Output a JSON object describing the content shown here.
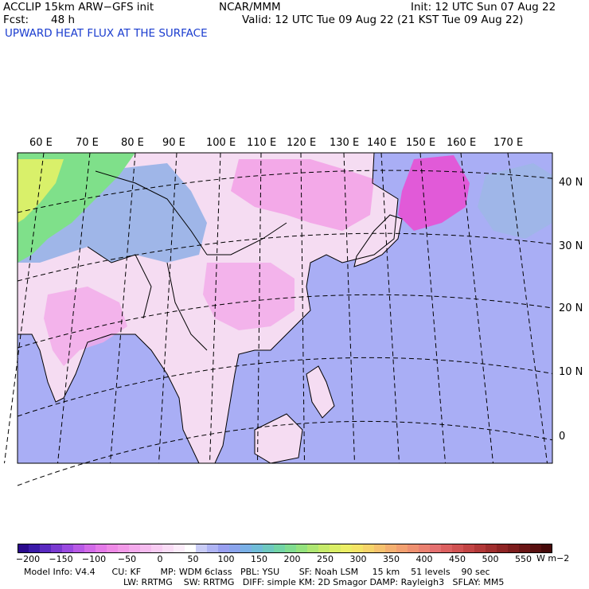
{
  "header": {
    "model_line": "ACCLIP 15km ARW−GFS init",
    "fcst_label": "Fcst:",
    "fcst_value": "48 h",
    "org": "NCAR/MMM",
    "init": "Init: 12 UTC Sun 07 Aug 22",
    "valid": "Valid: 12 UTC Tue 09 Aug 22 (21 KST Tue 09 Aug 22)",
    "field_title": "UPWARD HEAT FLUX AT THE SURFACE"
  },
  "map": {
    "lon_labels": [
      "60 E",
      "70 E",
      "80 E",
      "90 E",
      "100 E",
      "110 E",
      "120 E",
      "130 E",
      "140 E",
      "150 E",
      "160 E",
      "170 E"
    ],
    "lat_labels": [
      "40 N",
      "30 N",
      "20 N",
      "10 N",
      "0"
    ],
    "colors": {
      "ocean": "#a9aef5",
      "land_light": "#f5dcf2",
      "land_pink": "#f3a9e8",
      "hot_pink": "#e15ad8",
      "highland": "#9fb6e8",
      "green": "#7fe08a",
      "yellow": "#d9f06a"
    }
  },
  "colorbar": {
    "labels": [
      "−200",
      "−150",
      "−100",
      "−50",
      "0",
      "50",
      "100",
      "150",
      "200",
      "250",
      "300",
      "350",
      "400",
      "450",
      "500",
      "550"
    ],
    "unit": "W m−2",
    "colors": [
      "#2a0a8c",
      "#3a1aa8",
      "#5a2ac0",
      "#7a3ad0",
      "#9a4ae0",
      "#b85ae6",
      "#d26ae8",
      "#e47ae8",
      "#ee8ae6",
      "#f29ae8",
      "#f4aaec",
      "#f6bcef",
      "#f8ccf2",
      "#fadcf6",
      "#fcecfa",
      "#ffffff",
      "#c9ccf6",
      "#afb4f4",
      "#989ff0",
      "#8aa4ec",
      "#7ab0e6",
      "#70bcd8",
      "#6ec8c0",
      "#72d4a6",
      "#80dc90",
      "#94e27e",
      "#aee672",
      "#c6ea6a",
      "#daee66",
      "#ecee66",
      "#f4e466",
      "#f6d46a",
      "#f6c26e",
      "#f4b070",
      "#f2a070",
      "#ee9070",
      "#ea8070",
      "#e47070",
      "#dc6060",
      "#d05252",
      "#c24444",
      "#b23838",
      "#a02e2e",
      "#8e2424",
      "#7c1c1c",
      "#6a1616",
      "#581010",
      "#460a0a"
    ]
  },
  "footer": {
    "line1": "Model Info: V4.4      CU: KF       MP: WDM 6class   PBL: YSU       SF: Noah LSM     15 km    51 levels    90 sec",
    "line2": "LW: RRTMG    SW: RRTMG   DIFF: simple KM: 2D Smagor DAMP: Rayleigh3   SFLAY: MM5"
  }
}
